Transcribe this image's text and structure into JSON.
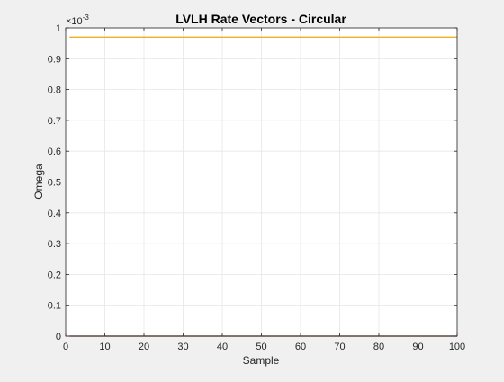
{
  "chart_data": {
    "type": "line",
    "title": "LVLH Rate Vectors - Circular",
    "xlabel": "Sample",
    "ylabel": "Omega",
    "xlim": [
      0,
      100
    ],
    "ylim": [
      0,
      1
    ],
    "y_exponent_base": "×10",
    "y_exponent_power": "-3",
    "grid": true,
    "x_ticks": [
      0,
      10,
      20,
      30,
      40,
      50,
      60,
      70,
      80,
      90,
      100
    ],
    "x_tick_labels": [
      "0",
      "10",
      "20",
      "30",
      "40",
      "50",
      "60",
      "70",
      "80",
      "90",
      "100"
    ],
    "y_ticks": [
      0,
      0.1,
      0.2,
      0.3,
      0.4,
      0.5,
      0.6,
      0.7,
      0.8,
      0.9,
      1
    ],
    "y_tick_labels": [
      "0",
      "0.1",
      "0.2",
      "0.3",
      "0.4",
      "0.5",
      "0.6",
      "0.7",
      "0.8",
      "0.9",
      "1"
    ],
    "x": [
      1,
      100
    ],
    "series": [
      {
        "values": [
          0,
          0
        ],
        "color": "#0072BD"
      },
      {
        "values": [
          0,
          0
        ],
        "color": "#D95319"
      },
      {
        "values": [
          0.97,
          0.97
        ],
        "color": "#EDB120"
      }
    ]
  },
  "colors": {
    "figure_background": "#f0f0f0",
    "axes_background": "#ffffff",
    "grid": "#e6e6e6",
    "axis_line": "#262626"
  }
}
